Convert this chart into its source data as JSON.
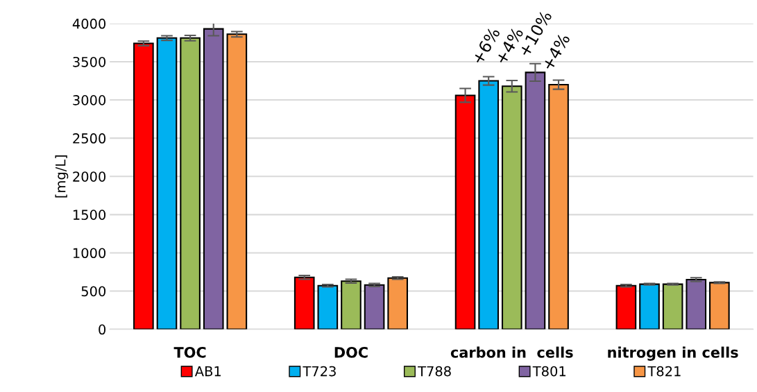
{
  "chart_data": {
    "type": "bar",
    "ylabel": "[mg/L]",
    "categories": [
      "TOC",
      "DOC",
      "carbon in  cells",
      "nitrogen in cells"
    ],
    "series": [
      {
        "name": "AB1",
        "color": "#ff0000",
        "values": [
          3740,
          680,
          3060,
          570
        ],
        "errors": [
          30,
          25,
          90,
          15
        ]
      },
      {
        "name": "T723",
        "color": "#00b0f0",
        "values": [
          3810,
          570,
          3250,
          590
        ],
        "errors": [
          30,
          15,
          55,
          10
        ]
      },
      {
        "name": "T788",
        "color": "#9bbb59",
        "values": [
          3810,
          630,
          3180,
          590
        ],
        "errors": [
          35,
          25,
          75,
          10
        ]
      },
      {
        "name": "T801",
        "color": "#8064a2",
        "values": [
          3930,
          580,
          3360,
          650
        ],
        "errors": [
          90,
          20,
          115,
          25
        ]
      },
      {
        "name": "T821",
        "color": "#f79646",
        "values": [
          3860,
          670,
          3200,
          610
        ],
        "errors": [
          35,
          15,
          60,
          10
        ]
      }
    ],
    "annotations": [
      "+6%",
      "+4%",
      "+10%",
      "+4%"
    ],
    "ylim": [
      0,
      4000
    ],
    "yticks": [
      0,
      500,
      1000,
      1500,
      2000,
      2500,
      3000,
      3500,
      4000
    ],
    "grid": "y",
    "legend": "bottom"
  }
}
